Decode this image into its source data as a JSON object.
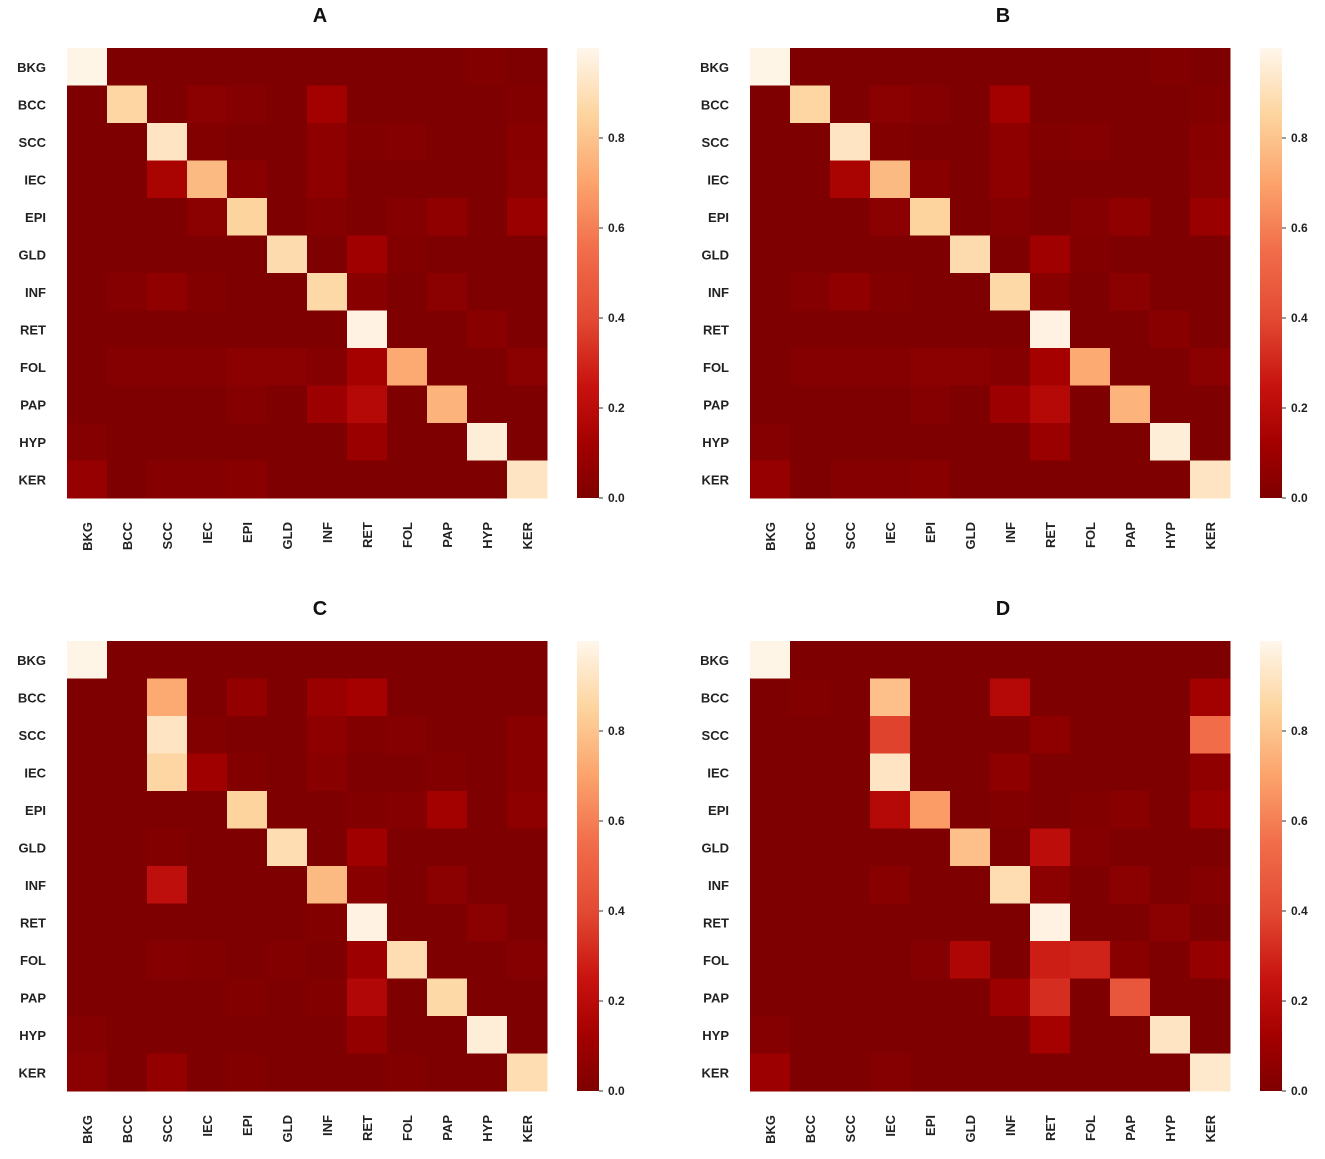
{
  "colors": {
    "low": "#7f0000",
    "high": "#fff7ec",
    "background": "#ffffff"
  },
  "chart_data": [
    {
      "type": "heatmap",
      "title": "A",
      "categories": [
        "BKG",
        "BCC",
        "SCC",
        "IEC",
        "EPI",
        "GLD",
        "INF",
        "RET",
        "FOL",
        "PAP",
        "HYP",
        "KER"
      ],
      "y_categories": [
        "BKG",
        "BCC",
        "SCC",
        "IEC",
        "EPI",
        "GLD",
        "INF",
        "RET",
        "FOL",
        "PAP",
        "HYP",
        "KER"
      ],
      "values": [
        [
          0.99,
          0.0,
          0.0,
          0.0,
          0.0,
          0.0,
          0.0,
          0.0,
          0.0,
          0.0,
          0.01,
          0.0
        ],
        [
          0.0,
          0.86,
          0.0,
          0.04,
          0.02,
          0.0,
          0.12,
          0.0,
          0.0,
          0.0,
          0.0,
          0.01
        ],
        [
          0.0,
          0.0,
          0.92,
          0.01,
          0.0,
          0.0,
          0.05,
          0.01,
          0.02,
          0.0,
          0.0,
          0.03
        ],
        [
          0.0,
          0.0,
          0.14,
          0.77,
          0.03,
          0.0,
          0.05,
          0.0,
          0.0,
          0.0,
          0.0,
          0.04
        ],
        [
          0.0,
          0.0,
          0.0,
          0.04,
          0.85,
          0.0,
          0.02,
          0.0,
          0.02,
          0.06,
          0.0,
          0.09
        ],
        [
          0.0,
          0.0,
          0.0,
          0.0,
          0.0,
          0.88,
          0.0,
          0.11,
          0.01,
          0.0,
          0.0,
          0.0
        ],
        [
          0.0,
          0.02,
          0.06,
          0.01,
          0.0,
          0.0,
          0.87,
          0.03,
          0.0,
          0.04,
          0.0,
          0.0
        ],
        [
          0.0,
          0.0,
          0.0,
          0.0,
          0.0,
          0.0,
          0.0,
          0.98,
          0.0,
          0.0,
          0.03,
          0.0
        ],
        [
          0.0,
          0.02,
          0.02,
          0.02,
          0.04,
          0.04,
          0.02,
          0.13,
          0.72,
          0.0,
          0.0,
          0.04
        ],
        [
          0.0,
          0.0,
          0.0,
          0.0,
          0.02,
          0.0,
          0.1,
          0.18,
          0.0,
          0.75,
          0.0,
          0.0
        ],
        [
          0.02,
          0.0,
          0.0,
          0.0,
          0.0,
          0.0,
          0.0,
          0.09,
          0.0,
          0.0,
          0.96,
          0.0
        ],
        [
          0.08,
          0.0,
          0.02,
          0.02,
          0.03,
          0.0,
          0.0,
          0.0,
          0.0,
          0.0,
          0.0,
          0.92
        ]
      ],
      "colorbar_ticks": [
        0.0,
        0.2,
        0.4,
        0.6,
        0.8
      ],
      "colorbar_range": [
        0,
        1
      ]
    },
    {
      "type": "heatmap",
      "title": "B",
      "categories": [
        "BKG",
        "BCC",
        "SCC",
        "IEC",
        "EPI",
        "GLD",
        "INF",
        "RET",
        "FOL",
        "PAP",
        "HYP",
        "KER"
      ],
      "y_categories": [
        "BKG",
        "BCC",
        "SCC",
        "IEC",
        "EPI",
        "GLD",
        "INF",
        "RET",
        "FOL",
        "PAP",
        "HYP",
        "KER"
      ],
      "values": [
        [
          0.99,
          0.0,
          0.0,
          0.0,
          0.0,
          0.0,
          0.0,
          0.0,
          0.0,
          0.0,
          0.01,
          0.0
        ],
        [
          0.0,
          0.86,
          0.0,
          0.04,
          0.02,
          0.0,
          0.12,
          0.0,
          0.0,
          0.0,
          0.0,
          0.01
        ],
        [
          0.0,
          0.0,
          0.92,
          0.01,
          0.0,
          0.0,
          0.05,
          0.01,
          0.02,
          0.0,
          0.0,
          0.03
        ],
        [
          0.0,
          0.0,
          0.14,
          0.77,
          0.03,
          0.0,
          0.05,
          0.0,
          0.0,
          0.0,
          0.0,
          0.04
        ],
        [
          0.0,
          0.0,
          0.0,
          0.04,
          0.85,
          0.0,
          0.02,
          0.0,
          0.02,
          0.06,
          0.0,
          0.09
        ],
        [
          0.0,
          0.0,
          0.0,
          0.0,
          0.0,
          0.88,
          0.0,
          0.11,
          0.01,
          0.0,
          0.0,
          0.0
        ],
        [
          0.0,
          0.02,
          0.06,
          0.01,
          0.0,
          0.0,
          0.87,
          0.03,
          0.0,
          0.04,
          0.0,
          0.0
        ],
        [
          0.0,
          0.0,
          0.0,
          0.0,
          0.0,
          0.0,
          0.0,
          0.98,
          0.0,
          0.0,
          0.03,
          0.0
        ],
        [
          0.0,
          0.02,
          0.02,
          0.02,
          0.04,
          0.04,
          0.02,
          0.13,
          0.72,
          0.0,
          0.0,
          0.04
        ],
        [
          0.0,
          0.0,
          0.0,
          0.0,
          0.02,
          0.0,
          0.1,
          0.18,
          0.0,
          0.75,
          0.0,
          0.0
        ],
        [
          0.02,
          0.0,
          0.0,
          0.0,
          0.0,
          0.0,
          0.0,
          0.09,
          0.0,
          0.0,
          0.96,
          0.0
        ],
        [
          0.08,
          0.0,
          0.02,
          0.02,
          0.03,
          0.0,
          0.0,
          0.0,
          0.0,
          0.0,
          0.0,
          0.92
        ]
      ],
      "colorbar_ticks": [
        0.0,
        0.2,
        0.4,
        0.6,
        0.8
      ],
      "colorbar_range": [
        0,
        1
      ]
    },
    {
      "type": "heatmap",
      "title": "C",
      "categories": [
        "BKG",
        "BCC",
        "SCC",
        "IEC",
        "EPI",
        "GLD",
        "INF",
        "RET",
        "FOL",
        "PAP",
        "HYP",
        "KER"
      ],
      "y_categories": [
        "BKG",
        "BCC",
        "SCC",
        "IEC",
        "EPI",
        "GLD",
        "INF",
        "RET",
        "FOL",
        "PAP",
        "HYP",
        "KER"
      ],
      "values": [
        [
          0.99,
          0.0,
          0.0,
          0.0,
          0.0,
          0.0,
          0.0,
          0.0,
          0.0,
          0.0,
          0.0,
          0.0
        ],
        [
          0.0,
          0.0,
          0.72,
          0.0,
          0.07,
          0.0,
          0.09,
          0.13,
          0.0,
          0.0,
          0.0,
          0.0
        ],
        [
          0.0,
          0.0,
          0.92,
          0.01,
          0.0,
          0.0,
          0.05,
          0.01,
          0.02,
          0.0,
          0.0,
          0.03
        ],
        [
          0.0,
          0.0,
          0.86,
          0.11,
          0.01,
          0.0,
          0.03,
          0.0,
          0.0,
          0.01,
          0.0,
          0.03
        ],
        [
          0.0,
          0.0,
          0.0,
          0.0,
          0.85,
          0.0,
          0.0,
          0.01,
          0.02,
          0.12,
          0.0,
          0.05
        ],
        [
          0.0,
          0.0,
          0.01,
          0.0,
          0.0,
          0.89,
          0.0,
          0.11,
          0.0,
          0.0,
          0.0,
          0.0
        ],
        [
          0.0,
          0.0,
          0.22,
          0.0,
          0.0,
          0.0,
          0.77,
          0.03,
          0.0,
          0.04,
          0.0,
          0.0
        ],
        [
          0.0,
          0.0,
          0.0,
          0.0,
          0.0,
          0.0,
          0.01,
          0.98,
          0.0,
          0.0,
          0.04,
          0.0
        ],
        [
          0.0,
          0.0,
          0.02,
          0.01,
          0.0,
          0.01,
          0.0,
          0.1,
          0.89,
          0.0,
          0.0,
          0.02
        ],
        [
          0.0,
          0.0,
          0.0,
          0.0,
          0.01,
          0.0,
          0.01,
          0.17,
          0.0,
          0.87,
          0.0,
          0.0
        ],
        [
          0.02,
          0.0,
          0.0,
          0.0,
          0.0,
          0.0,
          0.0,
          0.07,
          0.0,
          0.0,
          0.96,
          0.0
        ],
        [
          0.04,
          0.0,
          0.07,
          0.0,
          0.01,
          0.0,
          0.0,
          0.0,
          0.01,
          0.0,
          0.0,
          0.89
        ]
      ],
      "colorbar_ticks": [
        0.0,
        0.2,
        0.4,
        0.6,
        0.8
      ],
      "colorbar_range": [
        0,
        1
      ]
    },
    {
      "type": "heatmap",
      "title": "D",
      "categories": [
        "BKG",
        "BCC",
        "SCC",
        "IEC",
        "EPI",
        "GLD",
        "INF",
        "RET",
        "FOL",
        "PAP",
        "HYP",
        "KER"
      ],
      "y_categories": [
        "BKG",
        "BCC",
        "SCC",
        "IEC",
        "EPI",
        "GLD",
        "INF",
        "RET",
        "FOL",
        "PAP",
        "HYP",
        "KER"
      ],
      "values": [
        [
          0.99,
          0.0,
          0.0,
          0.0,
          0.0,
          0.0,
          0.0,
          0.0,
          0.0,
          0.0,
          0.0,
          0.0
        ],
        [
          0.0,
          0.01,
          0.0,
          0.79,
          0.0,
          0.0,
          0.18,
          0.0,
          0.0,
          0.0,
          0.0,
          0.12
        ],
        [
          0.0,
          0.0,
          0.0,
          0.38,
          0.0,
          0.0,
          0.0,
          0.05,
          0.0,
          0.0,
          0.0,
          0.55
        ],
        [
          0.0,
          0.0,
          0.0,
          0.92,
          0.0,
          0.0,
          0.05,
          0.0,
          0.0,
          0.0,
          0.0,
          0.06
        ],
        [
          0.0,
          0.0,
          0.0,
          0.18,
          0.68,
          0.0,
          0.01,
          0.0,
          0.01,
          0.03,
          0.0,
          0.09
        ],
        [
          0.0,
          0.0,
          0.0,
          0.0,
          0.0,
          0.79,
          0.0,
          0.21,
          0.02,
          0.0,
          0.0,
          0.0
        ],
        [
          0.0,
          0.0,
          0.0,
          0.03,
          0.0,
          0.0,
          0.89,
          0.04,
          0.0,
          0.04,
          0.0,
          0.02
        ],
        [
          0.0,
          0.0,
          0.0,
          0.0,
          0.0,
          0.0,
          0.0,
          0.98,
          0.0,
          0.0,
          0.04,
          0.0
        ],
        [
          0.0,
          0.0,
          0.0,
          0.0,
          0.02,
          0.16,
          0.0,
          0.28,
          0.29,
          0.03,
          0.0,
          0.08
        ],
        [
          0.0,
          0.0,
          0.0,
          0.0,
          0.0,
          0.0,
          0.1,
          0.32,
          0.0,
          0.45,
          0.0,
          0.0
        ],
        [
          0.02,
          0.0,
          0.0,
          0.0,
          0.0,
          0.0,
          0.0,
          0.13,
          0.0,
          0.0,
          0.92,
          0.0
        ],
        [
          0.1,
          0.0,
          0.0,
          0.02,
          0.0,
          0.0,
          0.0,
          0.0,
          0.0,
          0.0,
          0.0,
          0.94
        ]
      ],
      "colorbar_ticks": [
        0.0,
        0.2,
        0.4,
        0.6,
        0.8
      ],
      "colorbar_range": [
        0,
        1
      ]
    }
  ]
}
